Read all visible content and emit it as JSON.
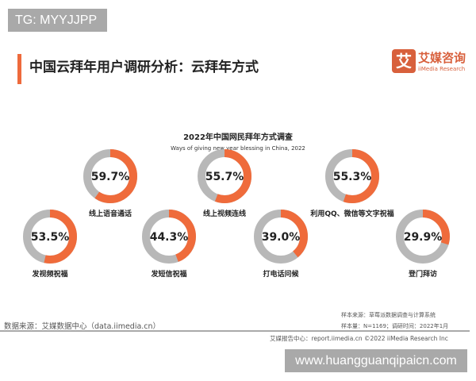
{
  "watermark_top": "TG: MYYJJPP",
  "header": {
    "title": "中国云拜年用户调研分析：云拜年方式",
    "logo_mark": "艾",
    "logo_cn": "艾媒咨询",
    "logo_en": "iiMedia Research",
    "accent": "#ee6a3c"
  },
  "chart_data": {
    "type": "donut",
    "title": "2022年中国网民拜年方式调查",
    "subtitle": "Ways of giving new year blessing in China, 2022",
    "colors": {
      "value": "#ef6b3b",
      "rest": "#b8b8b8"
    },
    "items": [
      {
        "label": "线上语音通话",
        "value": 59.7,
        "display": "59.7%"
      },
      {
        "label": "线上视频连线",
        "value": 55.7,
        "display": "55.7%"
      },
      {
        "label": "利用QQ、微信等文字祝福",
        "value": 55.3,
        "display": "55.3%"
      },
      {
        "label": "发视频祝福",
        "value": 53.5,
        "display": "53.5%"
      },
      {
        "label": "发短信祝福",
        "value": 44.3,
        "display": "44.3%"
      },
      {
        "label": "打电话问候",
        "value": 39.0,
        "display": "39.0%"
      },
      {
        "label": "登门拜访",
        "value": 29.9,
        "display": "29.9%"
      }
    ]
  },
  "footer": {
    "source": "数据来源：艾媒数据中心（data.iimedia.cn）",
    "sample_source": "样本来源：草莓派数据调查与计算系统",
    "sample_size": "样本量：N=1169；调研时间：2022年1月",
    "report": "艾媒报告中心：report.iimedia.cn   ©2022 iiMedia Research Inc"
  },
  "watermark_bottom": "www.huangguanqipaicn.com"
}
